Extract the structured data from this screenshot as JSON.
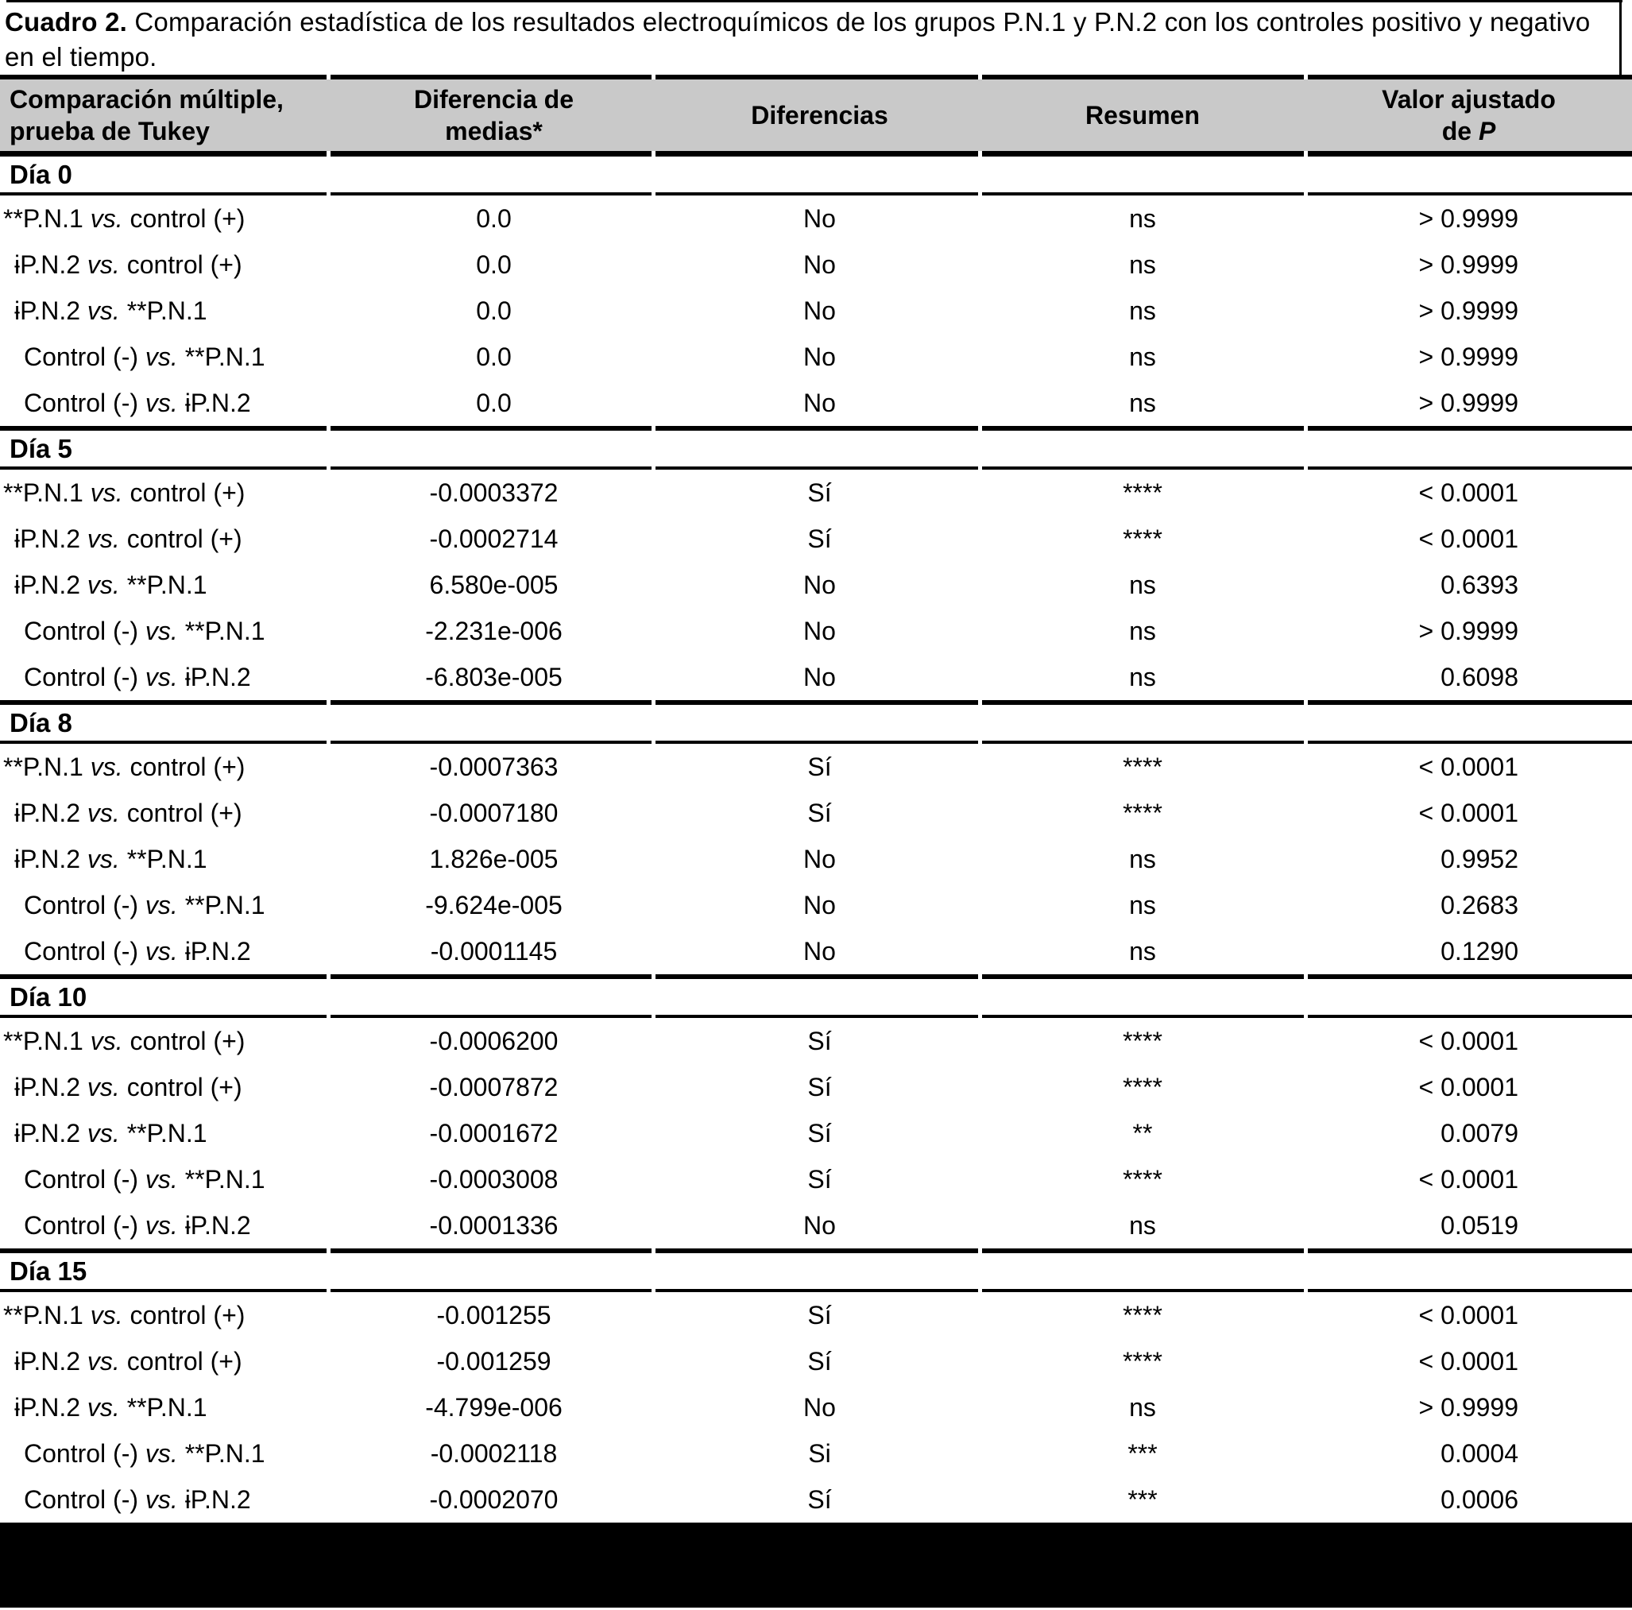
{
  "title": {
    "label": "Cuadro 2.",
    "text": " Comparación estadística de los resultados electroquímicos de los grupos P.N.1 y P.N.2 con los controles positivo y negativo en el tiempo."
  },
  "colors": {
    "header_bg": "#c9c9c9",
    "rule": "#000000"
  },
  "table": {
    "header": {
      "col1_line1": "Comparación múltiple,",
      "col1_line2": "prueba de Tukey",
      "col2_line1": "Diferencia de",
      "col2_line2": "medias*",
      "col3": "Diferencias",
      "col4": "Resumen",
      "col5_line1": "Valor ajustado",
      "col5_line2_prefix": "de ",
      "col5_line2_italic": "P"
    },
    "sections": [
      {
        "day": "Día 0",
        "rows": [
          {
            "comparison_pre": "**P.N.1 ",
            "vs": "vs.",
            "comparison_post": " control (+)",
            "indent": 0,
            "mean_diff": "0.0",
            "different": "No",
            "summary": "ns",
            "p_adj": "> 0.9999"
          },
          {
            "comparison_pre": "ɨP.N.2 ",
            "vs": "vs.",
            "comparison_post": " control (+)",
            "indent": 1,
            "mean_diff": "0.0",
            "different": "No",
            "summary": "ns",
            "p_adj": "> 0.9999"
          },
          {
            "comparison_pre": "ɨP.N.2 ",
            "vs": "vs.",
            "comparison_post": " **P.N.1",
            "indent": 1,
            "mean_diff": "0.0",
            "different": "No",
            "summary": "ns",
            "p_adj": "> 0.9999"
          },
          {
            "comparison_pre": "Control (-) ",
            "vs": "vs.",
            "comparison_post": " **P.N.1",
            "indent": 2,
            "mean_diff": "0.0",
            "different": "No",
            "summary": "ns",
            "p_adj": "> 0.9999"
          },
          {
            "comparison_pre": "Control (-) ",
            "vs": "vs.",
            "comparison_post": " ɨP.N.2",
            "indent": 2,
            "mean_diff": "0.0",
            "different": "No",
            "summary": "ns",
            "p_adj": "> 0.9999"
          }
        ]
      },
      {
        "day": "Día 5",
        "rows": [
          {
            "comparison_pre": "**P.N.1 ",
            "vs": "vs.",
            "comparison_post": " control (+)",
            "indent": 0,
            "mean_diff": "-0.0003372",
            "different": "Sí",
            "summary": "****",
            "p_adj": "< 0.0001"
          },
          {
            "comparison_pre": "ɨP.N.2 ",
            "vs": "vs.",
            "comparison_post": " control (+)",
            "indent": 1,
            "mean_diff": "-0.0002714",
            "different": "Sí",
            "summary": "****",
            "p_adj": "< 0.0001"
          },
          {
            "comparison_pre": "ɨP.N.2 ",
            "vs": "vs.",
            "comparison_post": " **P.N.1",
            "indent": 1,
            "mean_diff": "6.580e-005",
            "different": "No",
            "summary": "ns",
            "p_adj": "0.6393"
          },
          {
            "comparison_pre": "Control (-) ",
            "vs": "vs.",
            "comparison_post": " **P.N.1",
            "indent": 2,
            "mean_diff": "-2.231e-006",
            "different": "No",
            "summary": "ns",
            "p_adj": "> 0.9999"
          },
          {
            "comparison_pre": "Control (-) ",
            "vs": "vs.",
            "comparison_post": " ɨP.N.2",
            "indent": 2,
            "mean_diff": "-6.803e-005",
            "different": "No",
            "summary": "ns",
            "p_adj": "0.6098"
          }
        ]
      },
      {
        "day": "Día 8",
        "rows": [
          {
            "comparison_pre": "**P.N.1 ",
            "vs": "vs.",
            "comparison_post": " control (+)",
            "indent": 0,
            "mean_diff": "-0.0007363",
            "different": "Sí",
            "summary": "****",
            "p_adj": "< 0.0001"
          },
          {
            "comparison_pre": "ɨP.N.2 ",
            "vs": "vs.",
            "comparison_post": " control (+)",
            "indent": 1,
            "mean_diff": "-0.0007180",
            "different": "Sí",
            "summary": "****",
            "p_adj": "< 0.0001"
          },
          {
            "comparison_pre": "ɨP.N.2 ",
            "vs": "vs.",
            "comparison_post": " **P.N.1",
            "indent": 1,
            "mean_diff": "1.826e-005",
            "different": "No",
            "summary": "ns",
            "p_adj": "0.9952"
          },
          {
            "comparison_pre": "Control (-) ",
            "vs": "vs.",
            "comparison_post": " **P.N.1",
            "indent": 2,
            "mean_diff": "-9.624e-005",
            "different": "No",
            "summary": "ns",
            "p_adj": "0.2683"
          },
          {
            "comparison_pre": "Control (-) ",
            "vs": "vs.",
            "comparison_post": " ɨP.N.2",
            "indent": 2,
            "mean_diff": "-0.0001145",
            "different": "No",
            "summary": "ns",
            "p_adj": "0.1290"
          }
        ]
      },
      {
        "day": "Día 10",
        "rows": [
          {
            "comparison_pre": "**P.N.1 ",
            "vs": "vs.",
            "comparison_post": " control (+)",
            "indent": 0,
            "mean_diff": "-0.0006200",
            "different": "Sí",
            "summary": "****",
            "p_adj": "< 0.0001"
          },
          {
            "comparison_pre": "ɨP.N.2 ",
            "vs": "vs.",
            "comparison_post": " control (+)",
            "indent": 1,
            "mean_diff": "-0.0007872",
            "different": "Sí",
            "summary": "****",
            "p_adj": "< 0.0001"
          },
          {
            "comparison_pre": "ɨP.N.2 ",
            "vs": "vs.",
            "comparison_post": " **P.N.1",
            "indent": 1,
            "mean_diff": "-0.0001672",
            "different": "Sí",
            "summary": "**",
            "p_adj": "0.0079"
          },
          {
            "comparison_pre": "Control (-) ",
            "vs": "vs.",
            "comparison_post": " **P.N.1",
            "indent": 2,
            "mean_diff": "-0.0003008",
            "different": "Sí",
            "summary": "****",
            "p_adj": "< 0.0001"
          },
          {
            "comparison_pre": "Control (-) ",
            "vs": "vs.",
            "comparison_post": " ɨP.N.2",
            "indent": 2,
            "mean_diff": "-0.0001336",
            "different": "No",
            "summary": "ns",
            "p_adj": "0.0519"
          }
        ]
      },
      {
        "day": "Día 15",
        "rows": [
          {
            "comparison_pre": "**P.N.1 ",
            "vs": "vs.",
            "comparison_post": " control (+)",
            "indent": 0,
            "mean_diff": "-0.001255",
            "different": "Sí",
            "summary": "****",
            "p_adj": "< 0.0001"
          },
          {
            "comparison_pre": "ɨP.N.2 ",
            "vs": "vs.",
            "comparison_post": " control (+)",
            "indent": 1,
            "mean_diff": "-0.001259",
            "different": "Sí",
            "summary": "****",
            "p_adj": "< 0.0001"
          },
          {
            "comparison_pre": "ɨP.N.2 ",
            "vs": "vs.",
            "comparison_post": " **P.N.1",
            "indent": 1,
            "mean_diff": "-4.799e-006",
            "different": "No",
            "summary": "ns",
            "p_adj": "> 0.9999"
          },
          {
            "comparison_pre": "Control (-) ",
            "vs": "vs.",
            "comparison_post": " **P.N.1",
            "indent": 2,
            "mean_diff": "-0.0002118",
            "different": "Si",
            "summary": "***",
            "p_adj": "0.0004"
          },
          {
            "comparison_pre": "Control (-) ",
            "vs": "vs.",
            "comparison_post": " ɨP.N.2",
            "indent": 2,
            "mean_diff": "-0.0002070",
            "different": "Sí",
            "summary": "***",
            "p_adj": "0.0006"
          }
        ]
      }
    ]
  }
}
